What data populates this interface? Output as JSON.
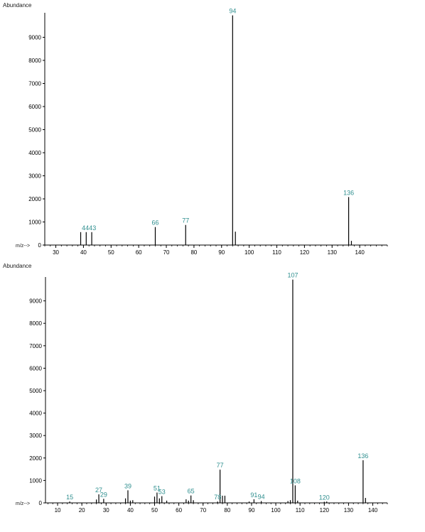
{
  "chart_data": [
    {
      "type": "bar",
      "ylabel": "Abundance",
      "xlabel": "m/z-->",
      "xlim": [
        26,
        150
      ],
      "ylim": [
        0,
        10000
      ],
      "xticks": [
        30,
        40,
        50,
        60,
        70,
        80,
        90,
        100,
        110,
        120,
        130,
        140
      ],
      "yticks": [
        0,
        1000,
        2000,
        3000,
        4000,
        5000,
        6000,
        7000,
        8000,
        9000
      ],
      "peaks": [
        {
          "x": 39,
          "y": 560
        },
        {
          "x": 41,
          "y": 560
        },
        {
          "x": 43,
          "y": 560
        },
        {
          "x": 66,
          "y": 780
        },
        {
          "x": 77,
          "y": 870
        },
        {
          "x": 94,
          "y": 9950
        },
        {
          "x": 95,
          "y": 580
        },
        {
          "x": 136,
          "y": 2080
        },
        {
          "x": 137,
          "y": 180
        }
      ],
      "peak_labels": [
        {
          "x": 42,
          "y": 560,
          "text": "4443"
        },
        {
          "x": 66,
          "y": 780,
          "text": "66"
        },
        {
          "x": 77,
          "y": 870,
          "text": "77"
        },
        {
          "x": 94,
          "y": 9950,
          "text": "94"
        },
        {
          "x": 136,
          "y": 2080,
          "text": "136"
        }
      ]
    },
    {
      "type": "bar",
      "ylabel": "Abundance",
      "xlabel": "m/z-->",
      "xlim": [
        5,
        146
      ],
      "ylim": [
        0,
        10000
      ],
      "xticks": [
        10,
        20,
        30,
        40,
        50,
        60,
        70,
        80,
        90,
        100,
        110,
        120,
        130,
        140
      ],
      "yticks": [
        0,
        1000,
        2000,
        3000,
        4000,
        5000,
        6000,
        7000,
        8000,
        9000
      ],
      "peaks": [
        {
          "x": 15,
          "y": 60
        },
        {
          "x": 26,
          "y": 150
        },
        {
          "x": 27,
          "y": 380
        },
        {
          "x": 29,
          "y": 180
        },
        {
          "x": 38,
          "y": 200
        },
        {
          "x": 39,
          "y": 560
        },
        {
          "x": 40,
          "y": 100
        },
        {
          "x": 41,
          "y": 120
        },
        {
          "x": 50,
          "y": 280
        },
        {
          "x": 51,
          "y": 460
        },
        {
          "x": 52,
          "y": 200
        },
        {
          "x": 53,
          "y": 300
        },
        {
          "x": 55,
          "y": 100
        },
        {
          "x": 63,
          "y": 160
        },
        {
          "x": 64,
          "y": 100
        },
        {
          "x": 65,
          "y": 330
        },
        {
          "x": 66,
          "y": 120
        },
        {
          "x": 76,
          "y": 60
        },
        {
          "x": 77,
          "y": 1480
        },
        {
          "x": 78,
          "y": 320
        },
        {
          "x": 79,
          "y": 320
        },
        {
          "x": 89,
          "y": 60
        },
        {
          "x": 91,
          "y": 160
        },
        {
          "x": 94,
          "y": 80
        },
        {
          "x": 105,
          "y": 80
        },
        {
          "x": 106,
          "y": 120
        },
        {
          "x": 107,
          "y": 9950
        },
        {
          "x": 108,
          "y": 780
        },
        {
          "x": 109,
          "y": 100
        },
        {
          "x": 120,
          "y": 50
        },
        {
          "x": 121,
          "y": 60
        },
        {
          "x": 136,
          "y": 1900
        },
        {
          "x": 137,
          "y": 220
        }
      ],
      "peak_labels": [
        {
          "x": 15,
          "y": 60,
          "text": "15"
        },
        {
          "x": 27,
          "y": 380,
          "text": "27"
        },
        {
          "x": 29,
          "y": 180,
          "text": "29"
        },
        {
          "x": 39,
          "y": 560,
          "text": "39"
        },
        {
          "x": 51,
          "y": 460,
          "text": "51"
        },
        {
          "x": 53,
          "y": 300,
          "text": "53"
        },
        {
          "x": 65,
          "y": 330,
          "text": "65"
        },
        {
          "x": 77,
          "y": 1480,
          "text": "77"
        },
        {
          "x": 76,
          "y": 60,
          "text": "78"
        },
        {
          "x": 91,
          "y": 160,
          "text": "91"
        },
        {
          "x": 94,
          "y": 80,
          "text": "94"
        },
        {
          "x": 107,
          "y": 9950,
          "text": "107"
        },
        {
          "x": 108,
          "y": 780,
          "text": "108"
        },
        {
          "x": 120,
          "y": 50,
          "text": "120"
        },
        {
          "x": 136,
          "y": 1900,
          "text": "136"
        }
      ]
    }
  ]
}
